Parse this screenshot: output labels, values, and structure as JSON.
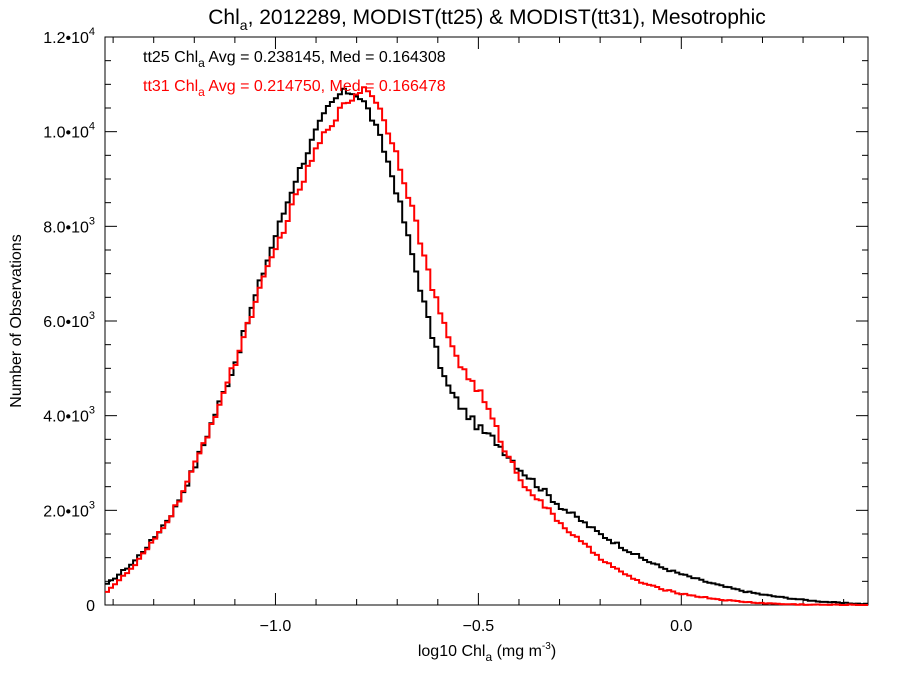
{
  "chart_data": {
    "type": "line",
    "title": {
      "prefix": "Chl",
      "sub": "a",
      "suffix": ", 2012289, MODIST(tt25) & MODIST(tt31), Mesotrophic"
    },
    "xlabel": {
      "prefix": "log10 Chl",
      "sub": "a",
      "mid": " (mg m",
      "sup": "-3",
      "suffix": ")"
    },
    "ylabel": "Number of Observations",
    "xlim": [
      -1.42,
      0.46
    ],
    "ylim": [
      0,
      12000
    ],
    "x_ticks": [
      {
        "value": -1.0,
        "label": "−1.0"
      },
      {
        "value": -0.5,
        "label": "−0.5"
      },
      {
        "value": 0.0,
        "label": "0.0"
      }
    ],
    "y_ticks": [
      {
        "value": 0,
        "label": "0"
      },
      {
        "value": 2000,
        "label": "2.0•10",
        "exp": "3"
      },
      {
        "value": 4000,
        "label": "4.0•10",
        "exp": "3"
      },
      {
        "value": 6000,
        "label": "6.0•10",
        "exp": "3"
      },
      {
        "value": 8000,
        "label": "8.0•10",
        "exp": "3"
      },
      {
        "value": 10000,
        "label": "1.0•10",
        "exp": "4"
      },
      {
        "value": 12000,
        "label": "1.2•10",
        "exp": "4"
      }
    ],
    "legend": "top-left",
    "series": [
      {
        "name": "tt25",
        "color": "#000000",
        "annotation": {
          "prefix": "tt25 Chl",
          "sub": "a",
          "suffix": " Avg = 0.238145, Med = 0.164308"
        },
        "x": [
          -1.42,
          -1.35,
          -1.3,
          -1.25,
          -1.2,
          -1.15,
          -1.1,
          -1.05,
          -1.0,
          -0.95,
          -0.9,
          -0.87,
          -0.84,
          -0.82,
          -0.8,
          -0.78,
          -0.76,
          -0.74,
          -0.72,
          -0.7,
          -0.68,
          -0.66,
          -0.64,
          -0.62,
          -0.6,
          -0.58,
          -0.56,
          -0.54,
          -0.52,
          -0.5,
          -0.48,
          -0.46,
          -0.44,
          -0.42,
          -0.4,
          -0.35,
          -0.3,
          -0.25,
          -0.2,
          -0.15,
          -0.1,
          -0.05,
          0.0,
          0.05,
          0.1,
          0.15,
          0.2,
          0.25,
          0.3,
          0.35,
          0.4,
          0.46
        ],
        "y": [
          400,
          900,
          1400,
          2000,
          2900,
          4000,
          5100,
          6500,
          7800,
          9000,
          10000,
          10500,
          10800,
          10850,
          10800,
          10600,
          10250,
          9800,
          9300,
          8700,
          8000,
          7300,
          6600,
          5900,
          5250,
          4700,
          4400,
          4150,
          3950,
          3750,
          3600,
          3500,
          3300,
          3100,
          2900,
          2500,
          2100,
          1800,
          1500,
          1250,
          1000,
          800,
          650,
          520,
          400,
          300,
          220,
          160,
          110,
          70,
          40,
          20
        ]
      },
      {
        "name": "tt31",
        "color": "#ff0000",
        "annotation": {
          "prefix": "tt31 Chl",
          "sub": "a",
          "suffix": " Avg = 0.214750, Med = 0.166478"
        },
        "x": [
          -1.42,
          -1.35,
          -1.3,
          -1.25,
          -1.2,
          -1.15,
          -1.1,
          -1.05,
          -1.0,
          -0.95,
          -0.9,
          -0.87,
          -0.84,
          -0.82,
          -0.8,
          -0.78,
          -0.76,
          -0.74,
          -0.72,
          -0.7,
          -0.68,
          -0.66,
          -0.64,
          -0.62,
          -0.6,
          -0.58,
          -0.56,
          -0.54,
          -0.52,
          -0.5,
          -0.48,
          -0.46,
          -0.44,
          -0.42,
          -0.4,
          -0.35,
          -0.3,
          -0.25,
          -0.2,
          -0.15,
          -0.1,
          -0.05,
          0.0,
          0.05,
          0.1,
          0.15,
          0.2,
          0.25,
          0.3,
          0.35,
          0.4,
          0.46
        ],
        "y": [
          250,
          800,
          1350,
          2000,
          2900,
          4000,
          5100,
          6400,
          7500,
          8600,
          9600,
          10100,
          10450,
          10650,
          10800,
          10950,
          10800,
          10400,
          10000,
          9500,
          8900,
          8300,
          7600,
          6900,
          6300,
          5800,
          5400,
          5000,
          4750,
          4550,
          4200,
          3800,
          3400,
          3050,
          2700,
          2200,
          1750,
          1350,
          1000,
          700,
          480,
          340,
          240,
          170,
          110,
          70,
          40,
          20,
          10,
          5,
          3,
          2
        ]
      }
    ]
  }
}
